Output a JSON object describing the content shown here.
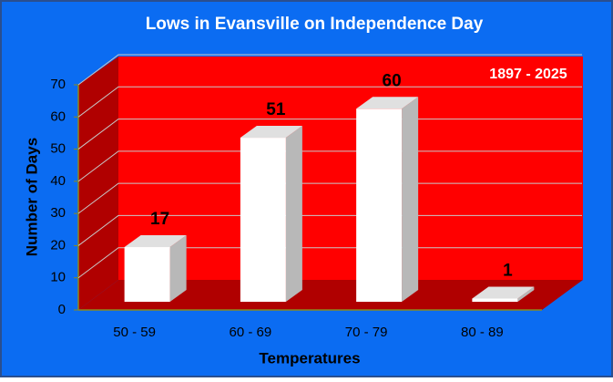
{
  "chart_data": {
    "type": "bar3d",
    "title": "Lows in Evansville on Independence Day",
    "annotation": "1897 - 2025",
    "x_label": "Temperatures",
    "y_label": "Number of Days",
    "categories": [
      "50 - 59",
      "60 - 69",
      "70 - 79",
      "80 - 89"
    ],
    "values": [
      17,
      51,
      60,
      1
    ],
    "color": "#ffffff",
    "ylim": [
      0,
      70
    ],
    "yticks": [
      0,
      10,
      20,
      30,
      40,
      50,
      60,
      70
    ],
    "grid": true
  }
}
